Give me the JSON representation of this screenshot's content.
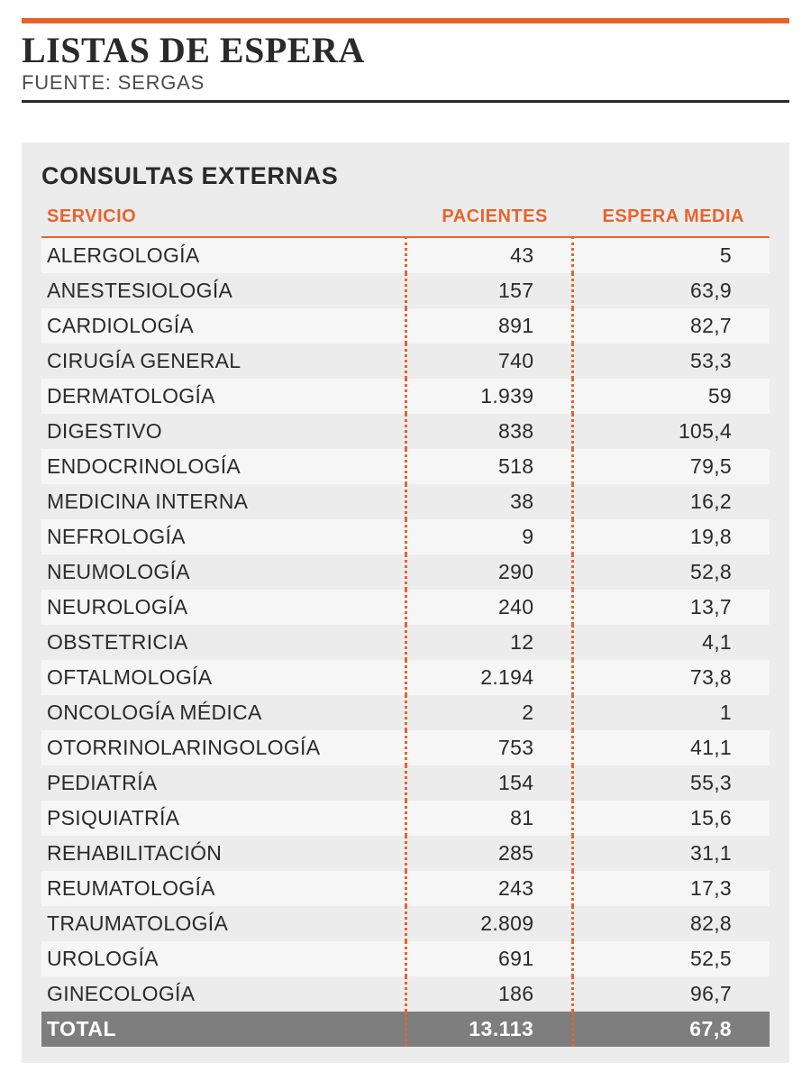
{
  "colors": {
    "accent": "#e8632c",
    "rule_dark": "#2b2b2b",
    "bg_section": "#ececec",
    "row_alt": "#f6f6f6",
    "total_bg": "#7e7e7e",
    "total_text": "#ffffff",
    "text": "#2a2a2a",
    "muted": "#4c4c4c"
  },
  "header": {
    "title": "LISTAS DE ESPERA",
    "source_label": "FUENTE:",
    "source_value": "SERGAS"
  },
  "section": {
    "title": "CONSULTAS EXTERNAS",
    "table": {
      "type": "table",
      "columns": [
        {
          "key": "servicio",
          "label": "SERVICIO",
          "align": "left"
        },
        {
          "key": "pacientes",
          "label": "PACIENTES",
          "align": "right"
        },
        {
          "key": "espera",
          "label": "ESPERA MEDIA",
          "align": "right"
        }
      ],
      "rows": [
        {
          "servicio": "ALERGOLOGÍA",
          "pacientes": "43",
          "espera": "5"
        },
        {
          "servicio": "ANESTESIOLOGÍA",
          "pacientes": "157",
          "espera": "63,9"
        },
        {
          "servicio": "CARDIOLOGÍA",
          "pacientes": "891",
          "espera": "82,7"
        },
        {
          "servicio": "CIRUGÍA GENERAL",
          "pacientes": "740",
          "espera": "53,3"
        },
        {
          "servicio": "DERMATOLOGÍA",
          "pacientes": "1.939",
          "espera": "59"
        },
        {
          "servicio": "DIGESTIVO",
          "pacientes": "838",
          "espera": "105,4"
        },
        {
          "servicio": "ENDOCRINOLOGÍA",
          "pacientes": "518",
          "espera": "79,5"
        },
        {
          "servicio": "MEDICINA INTERNA",
          "pacientes": "38",
          "espera": "16,2"
        },
        {
          "servicio": "NEFROLOGÍA",
          "pacientes": "9",
          "espera": "19,8"
        },
        {
          "servicio": "NEUMOLOGÍA",
          "pacientes": "290",
          "espera": "52,8"
        },
        {
          "servicio": "NEUROLOGÍA",
          "pacientes": "240",
          "espera": "13,7"
        },
        {
          "servicio": "OBSTETRICIA",
          "pacientes": "12",
          "espera": "4,1"
        },
        {
          "servicio": "OFTALMOLOGÍA",
          "pacientes": "2.194",
          "espera": "73,8"
        },
        {
          "servicio": "ONCOLOGÍA MÉDICA",
          "pacientes": "2",
          "espera": "1"
        },
        {
          "servicio": "OTORRINOLARINGOLOGÍA",
          "pacientes": "753",
          "espera": "41,1"
        },
        {
          "servicio": "PEDIATRÍA",
          "pacientes": "154",
          "espera": "55,3"
        },
        {
          "servicio": "PSIQUIATRÍA",
          "pacientes": "81",
          "espera": "15,6"
        },
        {
          "servicio": "REHABILITACIÓN",
          "pacientes": "285",
          "espera": "31,1"
        },
        {
          "servicio": "REUMATOLOGÍA",
          "pacientes": "243",
          "espera": "17,3"
        },
        {
          "servicio": "TRAUMATOLOGÍA",
          "pacientes": "2.809",
          "espera": "82,8"
        },
        {
          "servicio": "UROLOGÍA",
          "pacientes": "691",
          "espera": "52,5"
        },
        {
          "servicio": "GINECOLOGÍA",
          "pacientes": "186",
          "espera": "96,7"
        }
      ],
      "total": {
        "servicio": "TOTAL",
        "pacientes": "13.113",
        "espera": "67,8"
      }
    }
  }
}
